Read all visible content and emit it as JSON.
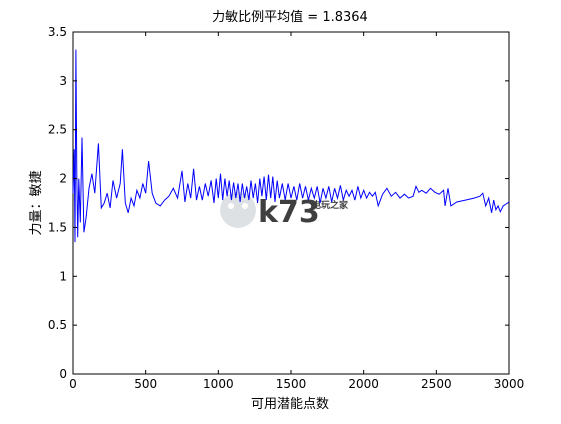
{
  "chart_data": {
    "type": "line",
    "title": "力敏比例平均值 = 1.8364",
    "xlabel": "可用潜能点数",
    "ylabel": "力量：敏捷",
    "xlim": [
      0,
      3000
    ],
    "ylim": [
      0,
      3.5
    ],
    "x_ticks": [
      "0",
      "500",
      "1000",
      "1500",
      "2000",
      "2500",
      "3000"
    ],
    "y_ticks": [
      "0",
      "0.5",
      "1",
      "1.5",
      "2",
      "2.5",
      "3",
      "3.5"
    ],
    "grid": false,
    "legend": "none",
    "series": [
      {
        "color": "#0000ff",
        "points": [
          [
            0,
            1.85
          ],
          [
            8,
            2.3
          ],
          [
            14,
            1.35
          ],
          [
            20,
            3.32
          ],
          [
            26,
            2.05
          ],
          [
            32,
            1.4
          ],
          [
            40,
            2.0
          ],
          [
            50,
            1.55
          ],
          [
            62,
            2.42
          ],
          [
            75,
            1.45
          ],
          [
            90,
            1.6
          ],
          [
            110,
            1.9
          ],
          [
            130,
            2.05
          ],
          [
            150,
            1.85
          ],
          [
            175,
            2.36
          ],
          [
            195,
            1.7
          ],
          [
            215,
            1.75
          ],
          [
            235,
            1.85
          ],
          [
            255,
            1.7
          ],
          [
            275,
            1.98
          ],
          [
            300,
            1.8
          ],
          [
            325,
            1.95
          ],
          [
            340,
            2.3
          ],
          [
            360,
            1.75
          ],
          [
            380,
            1.65
          ],
          [
            400,
            1.8
          ],
          [
            420,
            1.72
          ],
          [
            440,
            1.88
          ],
          [
            460,
            1.8
          ],
          [
            480,
            1.95
          ],
          [
            500,
            1.85
          ],
          [
            520,
            2.18
          ],
          [
            545,
            1.85
          ],
          [
            570,
            1.75
          ],
          [
            600,
            1.72
          ],
          [
            630,
            1.78
          ],
          [
            660,
            1.82
          ],
          [
            690,
            1.9
          ],
          [
            720,
            1.8
          ],
          [
            750,
            2.08
          ],
          [
            770,
            1.76
          ],
          [
            790,
            1.95
          ],
          [
            810,
            1.8
          ],
          [
            830,
            2.1
          ],
          [
            850,
            1.78
          ],
          [
            870,
            1.92
          ],
          [
            890,
            1.78
          ],
          [
            910,
            1.95
          ],
          [
            930,
            1.82
          ],
          [
            950,
            1.98
          ],
          [
            970,
            1.75
          ],
          [
            985,
            2.0
          ],
          [
            1000,
            1.8
          ],
          [
            1015,
            2.05
          ],
          [
            1030,
            1.78
          ],
          [
            1045,
            2.0
          ],
          [
            1060,
            1.82
          ],
          [
            1075,
            1.98
          ],
          [
            1090,
            1.78
          ],
          [
            1105,
            1.96
          ],
          [
            1120,
            1.8
          ],
          [
            1135,
            1.95
          ],
          [
            1150,
            1.76
          ],
          [
            1165,
            1.95
          ],
          [
            1180,
            1.8
          ],
          [
            1195,
            1.92
          ],
          [
            1210,
            1.78
          ],
          [
            1225,
            1.98
          ],
          [
            1240,
            1.8
          ],
          [
            1255,
            1.95
          ],
          [
            1270,
            1.75
          ],
          [
            1285,
            2.0
          ],
          [
            1300,
            1.82
          ],
          [
            1315,
            2.02
          ],
          [
            1330,
            1.78
          ],
          [
            1345,
            2.04
          ],
          [
            1360,
            1.8
          ],
          [
            1375,
            2.02
          ],
          [
            1390,
            1.76
          ],
          [
            1405,
            1.98
          ],
          [
            1420,
            1.8
          ],
          [
            1440,
            1.95
          ],
          [
            1460,
            1.78
          ],
          [
            1480,
            1.95
          ],
          [
            1500,
            1.8
          ],
          [
            1520,
            1.92
          ],
          [
            1540,
            1.78
          ],
          [
            1560,
            1.95
          ],
          [
            1580,
            1.8
          ],
          [
            1600,
            1.92
          ],
          [
            1620,
            1.78
          ],
          [
            1640,
            1.9
          ],
          [
            1660,
            1.8
          ],
          [
            1680,
            1.92
          ],
          [
            1700,
            1.75
          ],
          [
            1720,
            1.9
          ],
          [
            1740,
            1.8
          ],
          [
            1760,
            1.92
          ],
          [
            1780,
            1.76
          ],
          [
            1800,
            1.9
          ],
          [
            1820,
            1.8
          ],
          [
            1840,
            1.93
          ],
          [
            1860,
            1.78
          ],
          [
            1880,
            1.88
          ],
          [
            1900,
            1.82
          ],
          [
            1920,
            1.88
          ],
          [
            1940,
            1.78
          ],
          [
            1960,
            1.92
          ],
          [
            1980,
            1.8
          ],
          [
            2000,
            1.88
          ],
          [
            2020,
            1.8
          ],
          [
            2040,
            1.86
          ],
          [
            2060,
            1.82
          ],
          [
            2080,
            1.86
          ],
          [
            2100,
            1.72
          ],
          [
            2130,
            1.84
          ],
          [
            2160,
            1.9
          ],
          [
            2190,
            1.82
          ],
          [
            2220,
            1.86
          ],
          [
            2250,
            1.8
          ],
          [
            2280,
            1.84
          ],
          [
            2310,
            1.8
          ],
          [
            2340,
            1.82
          ],
          [
            2360,
            1.92
          ],
          [
            2380,
            1.86
          ],
          [
            2400,
            1.88
          ],
          [
            2430,
            1.85
          ],
          [
            2460,
            1.9
          ],
          [
            2490,
            1.86
          ],
          [
            2520,
            1.84
          ],
          [
            2550,
            1.88
          ],
          [
            2560,
            1.72
          ],
          [
            2580,
            1.9
          ],
          [
            2600,
            1.72
          ],
          [
            2640,
            1.76
          ],
          [
            2700,
            1.78
          ],
          [
            2760,
            1.8
          ],
          [
            2800,
            1.82
          ],
          [
            2820,
            1.85
          ],
          [
            2840,
            1.72
          ],
          [
            2860,
            1.8
          ],
          [
            2880,
            1.65
          ],
          [
            2895,
            1.78
          ],
          [
            2910,
            1.68
          ],
          [
            2925,
            1.72
          ],
          [
            2940,
            1.66
          ],
          [
            2960,
            1.72
          ],
          [
            2980,
            1.74
          ],
          [
            3000,
            1.76
          ]
        ]
      }
    ]
  },
  "watermark": {
    "text": "k73",
    "subtext": "电玩之家",
    "color": "#cfd3d6"
  }
}
